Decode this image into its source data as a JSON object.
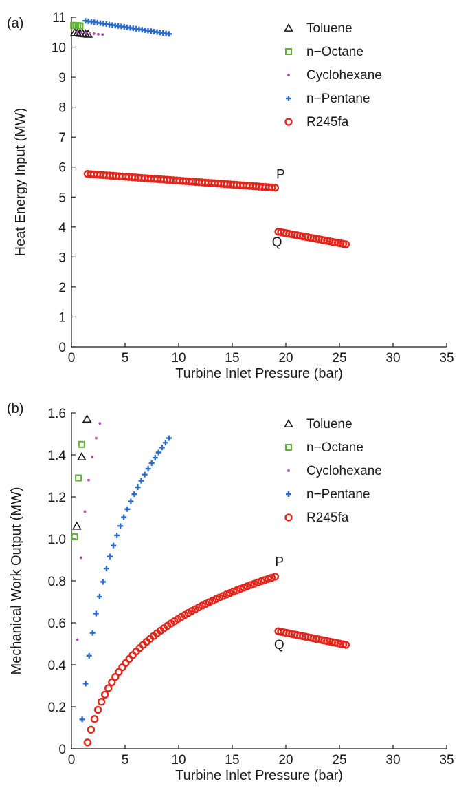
{
  "chart_data": [
    {
      "type": "scatter",
      "panel_label": "(a)",
      "xlabel": "Turbine Inlet Pressure (bar)",
      "ylabel": "Heat Energy Input (MW)",
      "xlim": [
        0,
        35
      ],
      "ylim": [
        0,
        11
      ],
      "xticks": [
        0,
        5,
        10,
        15,
        20,
        25,
        30,
        35
      ],
      "yticks": [
        0,
        1,
        2,
        3,
        4,
        5,
        6,
        7,
        8,
        9,
        10,
        11
      ],
      "grid": false,
      "legend_position": "top-right",
      "series": [
        {
          "name": "Toluene",
          "marker": "triangle",
          "color": "#1a1a1a",
          "x": [
            0.3,
            0.55,
            0.8,
            1.05,
            1.3,
            1.55
          ],
          "y": [
            10.48,
            10.47,
            10.46,
            10.45,
            10.44,
            10.43
          ]
        },
        {
          "name": "n−Octane",
          "marker": "square",
          "color": "#5cb531",
          "x": [
            0.2,
            0.4,
            0.6,
            0.8
          ],
          "y": [
            10.73,
            10.72,
            10.72,
            10.71
          ]
        },
        {
          "name": "Cyclohexane",
          "marker": "dot",
          "color": "#b04cb0",
          "x": [
            0.5,
            0.9,
            1.3,
            1.7,
            2.1,
            2.5,
            2.9
          ],
          "y": [
            10.5,
            10.49,
            10.47,
            10.46,
            10.45,
            10.43,
            10.42
          ]
        },
        {
          "name": "n−Pentane",
          "marker": "plus",
          "color": "#2a6bcc",
          "x_start": 1.3,
          "x_end": 9.1,
          "y_start": 10.88,
          "y_end": 10.44,
          "count": 29
        },
        {
          "name": "R245fa",
          "marker": "circle",
          "color": "#e2261c",
          "segments": [
            {
              "x_start": 1.5,
              "x_end": 19.0,
              "y_start": 5.77,
              "y_end": 5.31,
              "count": 60
            },
            {
              "x_start": 19.3,
              "x_end": 25.6,
              "y_start": 3.84,
              "y_end": 3.42,
              "count": 26
            }
          ]
        }
      ],
      "annotations": [
        {
          "text": "P",
          "x": 19.1,
          "y": 5.62
        },
        {
          "text": "Q",
          "x": 18.7,
          "y": 3.35
        }
      ]
    },
    {
      "type": "scatter",
      "panel_label": "(b)",
      "xlabel": "Turbine Inlet Pressure (bar)",
      "ylabel": "Mechanical Work Output (MW)",
      "xlim": [
        0,
        35
      ],
      "ylim": [
        0,
        1.6
      ],
      "xticks": [
        0,
        5,
        10,
        15,
        20,
        25,
        30,
        35
      ],
      "yticks": [
        0,
        0.2,
        0.4,
        0.6,
        0.8,
        1.0,
        1.2,
        1.4,
        1.6
      ],
      "ytick_labels": [
        "0",
        "0.2",
        "0.4",
        "0.6",
        "0.8",
        "1.0",
        "1.2",
        "1.4",
        "1.6"
      ],
      "grid": false,
      "legend_position": "top-right",
      "series": [
        {
          "name": "Toluene",
          "marker": "triangle",
          "color": "#1a1a1a",
          "x": [
            0.5,
            0.95,
            1.45
          ],
          "y": [
            1.06,
            1.39,
            1.57
          ]
        },
        {
          "name": "n−Octane",
          "marker": "square",
          "color": "#5cb531",
          "x": [
            0.3,
            0.65,
            0.95
          ],
          "y": [
            1.01,
            1.29,
            1.45
          ]
        },
        {
          "name": "Cyclohexane",
          "marker": "dot",
          "color": "#b04cb0",
          "x": [
            0.55,
            0.9,
            1.25,
            1.6,
            1.95,
            2.3,
            2.65
          ],
          "y": [
            0.52,
            0.91,
            1.13,
            1.28,
            1.39,
            1.48,
            1.55
          ]
        },
        {
          "name": "n−Pentane",
          "marker": "plus",
          "color": "#2a6bcc",
          "x_start": 1.0,
          "x_end": 9.1,
          "count": 26,
          "curve": {
            "y_at_start": 0.14,
            "y_at_end": 1.48,
            "shape": "log"
          }
        },
        {
          "name": "R245fa",
          "marker": "circle",
          "color": "#e2261c",
          "segments": [
            {
              "x_start": 1.5,
              "x_end": 19.0,
              "count": 55,
              "curve": {
                "y_at_start": 0.03,
                "y_at_end": 0.82,
                "shape": "log"
              }
            },
            {
              "x_start": 19.3,
              "x_end": 25.6,
              "y_start": 0.56,
              "y_end": 0.495,
              "count": 26
            }
          ]
        }
      ],
      "annotations": [
        {
          "text": "P",
          "x": 19.0,
          "y": 0.87
        },
        {
          "text": "Q",
          "x": 18.9,
          "y": 0.475
        }
      ]
    }
  ]
}
